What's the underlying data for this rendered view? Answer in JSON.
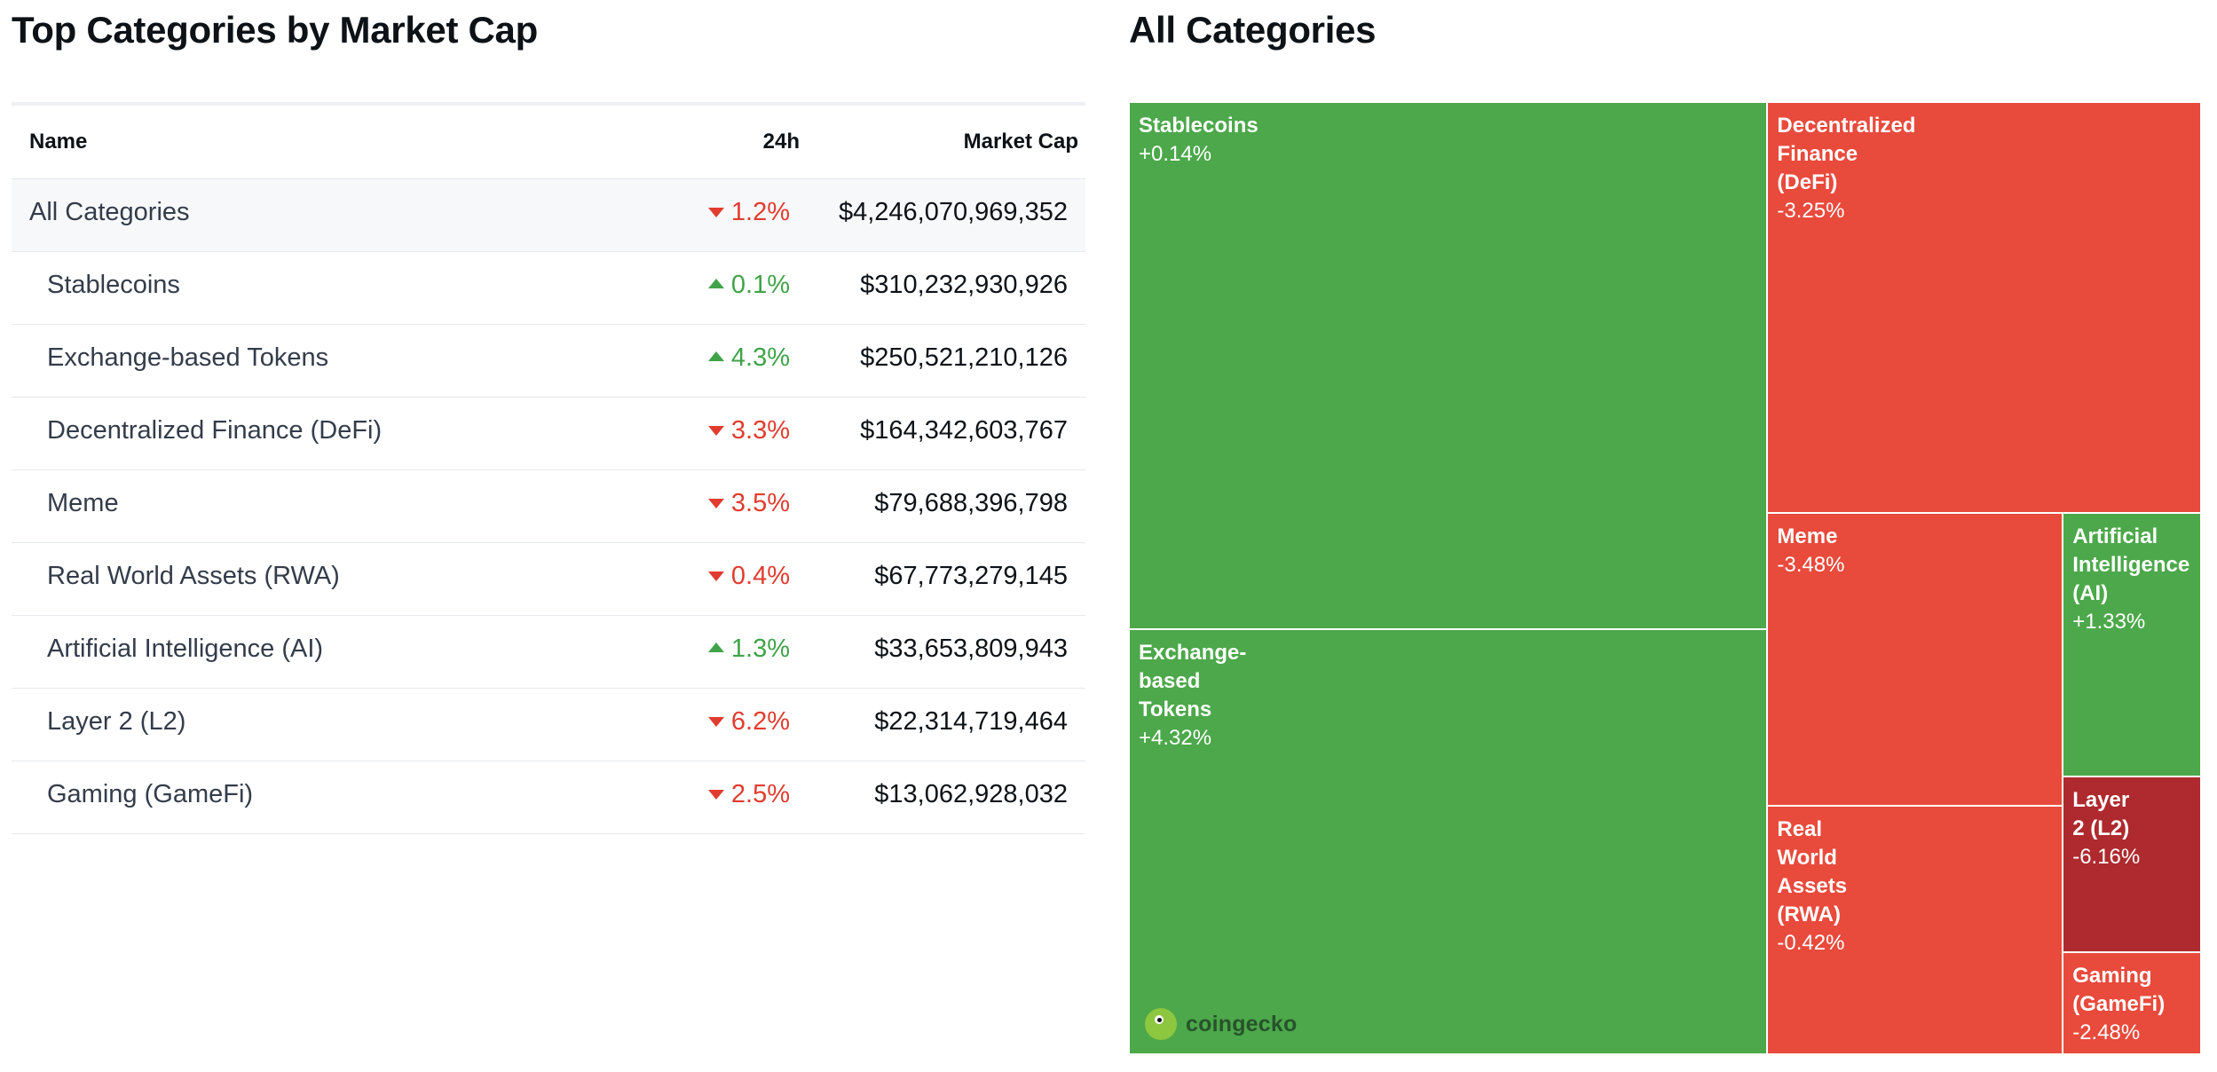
{
  "left": {
    "title": "Top Categories by Market Cap",
    "headers": {
      "name": "Name",
      "change": "24h",
      "market_cap": "Market Cap"
    },
    "rows": [
      {
        "name": "All Categories",
        "change": "1.2%",
        "direction": "down",
        "market_cap": "$4,246,070,969,352",
        "summary": true
      },
      {
        "name": "Stablecoins",
        "change": "0.1%",
        "direction": "up",
        "market_cap": "$310,232,930,926"
      },
      {
        "name": "Exchange-based Tokens",
        "change": "4.3%",
        "direction": "up",
        "market_cap": "$250,521,210,126"
      },
      {
        "name": "Decentralized Finance (DeFi)",
        "change": "3.3%",
        "direction": "down",
        "market_cap": "$164,342,603,767"
      },
      {
        "name": "Meme",
        "change": "3.5%",
        "direction": "down",
        "market_cap": "$79,688,396,798"
      },
      {
        "name": "Real World Assets (RWA)",
        "change": "0.4%",
        "direction": "down",
        "market_cap": "$67,773,279,145"
      },
      {
        "name": "Artificial Intelligence (AI)",
        "change": "1.3%",
        "direction": "up",
        "market_cap": "$33,653,809,943"
      },
      {
        "name": "Layer 2 (L2)",
        "change": "6.2%",
        "direction": "down",
        "market_cap": "$22,314,719,464"
      },
      {
        "name": "Gaming (GameFi)",
        "change": "2.5%",
        "direction": "down",
        "market_cap": "$13,062,928,032"
      }
    ]
  },
  "right": {
    "title": "All Categories",
    "logo_text": "coingecko"
  },
  "colors": {
    "up": "#4ca84a",
    "down": "#e84a3c",
    "strong_down": "#ae2a2e",
    "text_up": "#40a349",
    "text_down": "#e03c30"
  },
  "chart_data": {
    "type": "treemap",
    "title": "All Categories",
    "value_field": "market_cap_usd",
    "nodes": [
      {
        "name": "Stablecoins",
        "label": "Stablecoins",
        "change_label": "+0.14%",
        "change": 0.14,
        "market_cap_usd": 310232930926
      },
      {
        "name": "Exchange-based Tokens",
        "label": "Exchange-\nbased\nTokens",
        "change_label": "+4.32%",
        "change": 4.32,
        "market_cap_usd": 250521210126
      },
      {
        "name": "Decentralized Finance (DeFi)",
        "label": "Decentralized\nFinance\n(DeFi)",
        "change_label": "-3.25%",
        "change": -3.25,
        "market_cap_usd": 164342603767
      },
      {
        "name": "Meme",
        "label": "Meme",
        "change_label": "-3.48%",
        "change": -3.48,
        "market_cap_usd": 79688396798
      },
      {
        "name": "Real World Assets (RWA)",
        "label": "Real\nWorld\nAssets\n(RWA)",
        "change_label": "-0.42%",
        "change": -0.42,
        "market_cap_usd": 67773279145
      },
      {
        "name": "Artificial Intelligence (AI)",
        "label": "Artificial\nIntelligence\n(AI)",
        "change_label": "+1.33%",
        "change": 1.33,
        "market_cap_usd": 33653809943
      },
      {
        "name": "Layer 2 (L2)",
        "label": "Layer\n2 (L2)",
        "change_label": "-6.16%",
        "change": -6.16,
        "market_cap_usd": 22314719464
      },
      {
        "name": "Gaming (GameFi)",
        "label": "Gaming\n(GameFi)",
        "change_label": "-2.48%",
        "change": -2.48,
        "market_cap_usd": 13062928032
      }
    ]
  }
}
